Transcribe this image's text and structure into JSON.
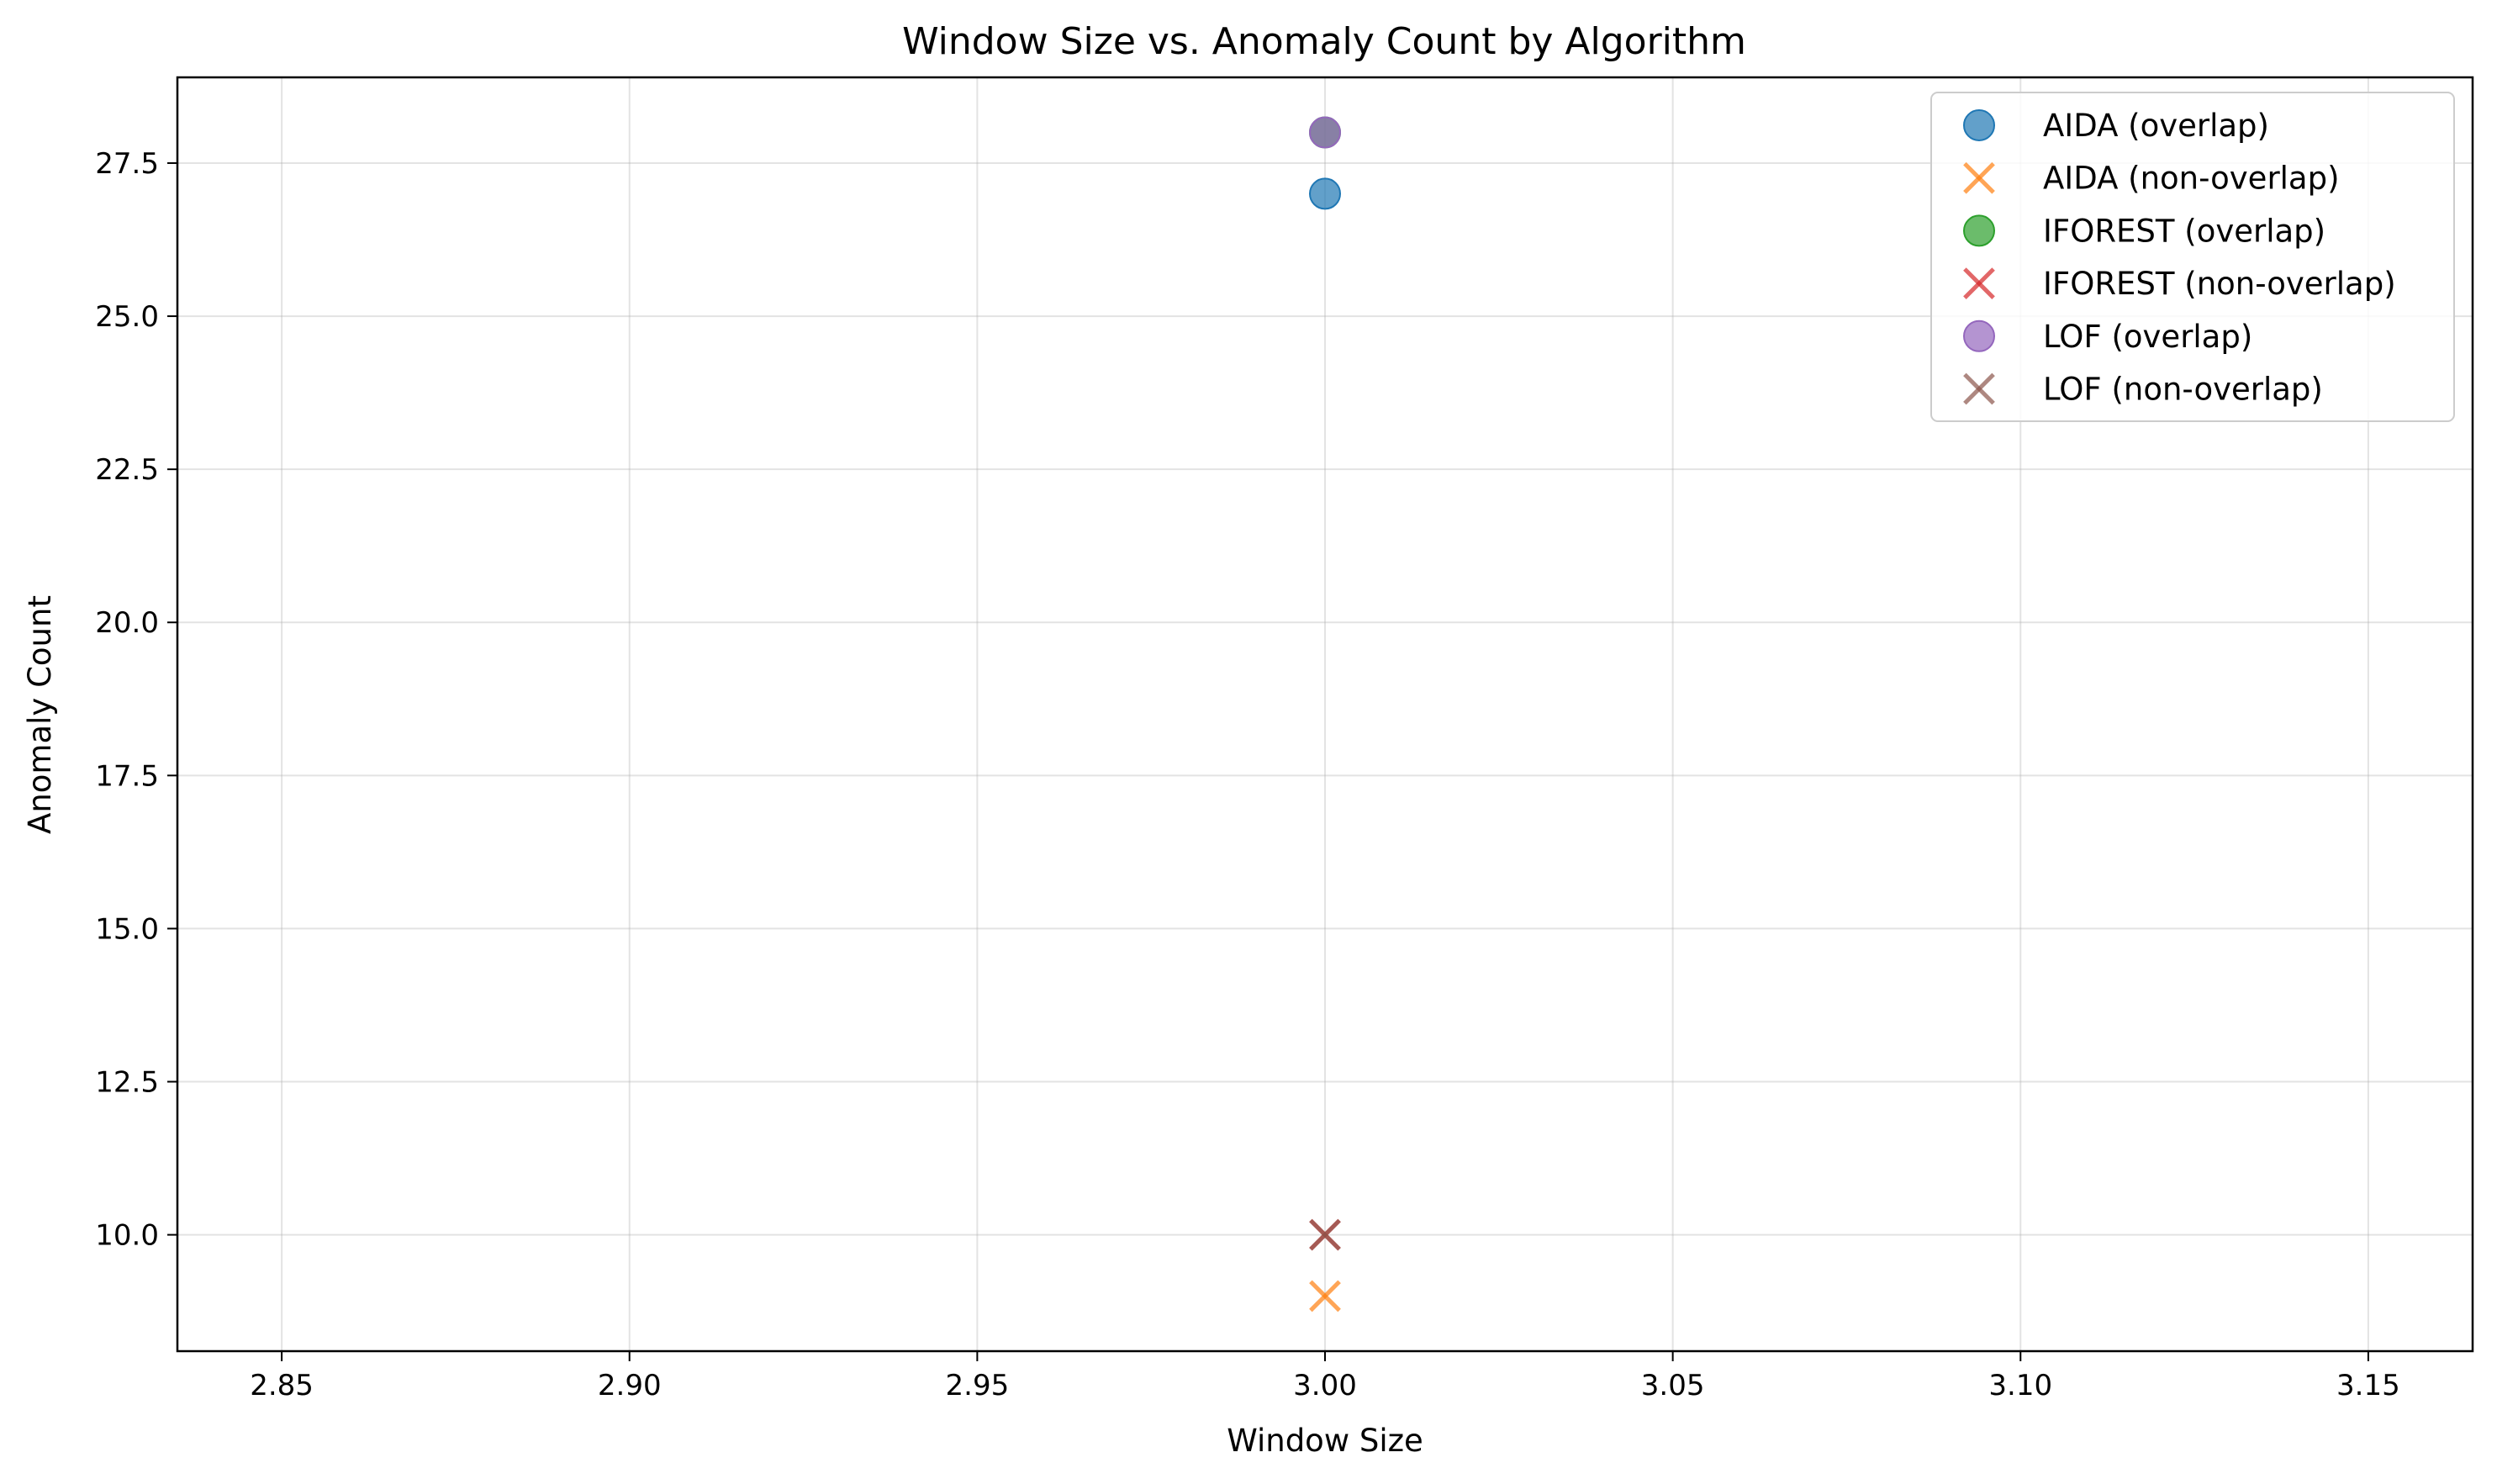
{
  "chart_data": {
    "type": "scatter",
    "title": "Window Size vs. Anomaly Count by Algorithm",
    "xlabel": "Window Size",
    "ylabel": "Anomaly Count",
    "xlim": [
      2.835,
      3.165
    ],
    "ylim": [
      8.1,
      28.9
    ],
    "xticks": [
      2.85,
      2.9,
      2.95,
      3.0,
      3.05,
      3.1,
      3.15
    ],
    "xtick_labels": [
      "2.85",
      "2.90",
      "2.95",
      "3.00",
      "3.05",
      "3.10",
      "3.15"
    ],
    "yticks": [
      10.0,
      12.5,
      15.0,
      17.5,
      20.0,
      22.5,
      25.0,
      27.5
    ],
    "ytick_labels": [
      "10.0",
      "12.5",
      "15.0",
      "17.5",
      "20.0",
      "22.5",
      "25.0",
      "27.5"
    ],
    "grid": true,
    "legend_position": "top-right",
    "series": [
      {
        "name": "AIDA (overlap)",
        "marker": "circle",
        "color": "#1f77b4",
        "points": [
          {
            "x": 3.0,
            "y": 27
          }
        ]
      },
      {
        "name": "AIDA (non-overlap)",
        "marker": "x",
        "color": "#ff7f0e",
        "points": [
          {
            "x": 3.0,
            "y": 9
          }
        ]
      },
      {
        "name": "IFOREST (overlap)",
        "marker": "circle",
        "color": "#2ca02c",
        "points": [
          {
            "x": 3.0,
            "y": 28
          }
        ]
      },
      {
        "name": "IFOREST (non-overlap)",
        "marker": "x",
        "color": "#d62728",
        "points": [
          {
            "x": 3.0,
            "y": 10
          }
        ]
      },
      {
        "name": "LOF (overlap)",
        "marker": "circle",
        "color": "#9467bd",
        "points": [
          {
            "x": 3.0,
            "y": 28
          }
        ]
      },
      {
        "name": "LOF (non-overlap)",
        "marker": "x",
        "color": "#8c564b",
        "points": [
          {
            "x": 3.0,
            "y": 10
          }
        ]
      }
    ]
  }
}
